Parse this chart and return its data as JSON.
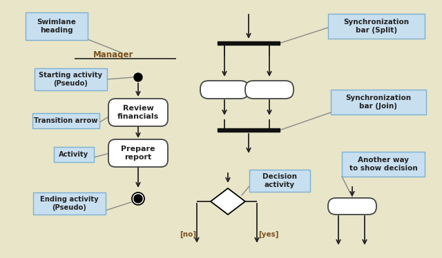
{
  "bg_color": "#e8e5c8",
  "label_box_color": "#c8dff0",
  "label_box_edge": "#7ab0d0",
  "activity_fill": "#ffffff",
  "activity_edge": "#444444",
  "sync_bar_color": "#111111",
  "arrow_color": "#222222",
  "text_color": "#222222",
  "manager_color": "#7a5020",
  "decision_label_color": "#7a5020",
  "label_text": {
    "swimlane": "Swimlane\nheading",
    "starting": "Starting activity\n(Pseudo)",
    "transition": "Transition arrow",
    "activity": "Activity",
    "ending": "Ending activity\n(Pseudo)",
    "sync_split": "Synchronization\nbar (Split)",
    "sync_join": "Synchronization\nbar (Join)",
    "decision": "Decision\nactivity",
    "another": "Another way\nto show decision"
  },
  "activity_labels": {
    "review": "Review\nfinancials",
    "prepare": "Prepare\nreport"
  },
  "decision_labels": [
    "[no]",
    "[yes]"
  ]
}
